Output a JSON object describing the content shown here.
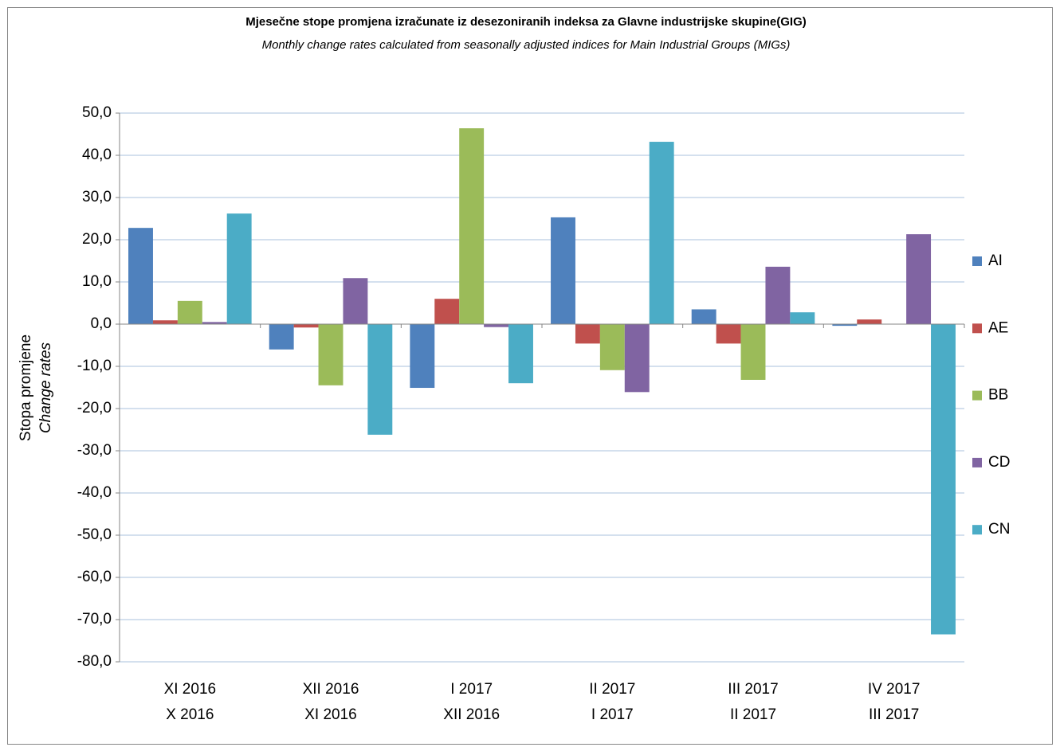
{
  "chart_data": {
    "type": "bar",
    "title": "Mjesečne stope promjena izračunate iz desezoniranih indeksa za Glavne industrijske skupine(GIG)",
    "subtitle": "Monthly change rates calculated from seasonally adjusted indices for Main Industrial Groups (MIGs)",
    "y_label": [
      "Stopa promjene",
      "Change rates"
    ],
    "categories": [
      [
        "XI 2016",
        "X 2016"
      ],
      [
        "XII 2016",
        "XI 2016"
      ],
      [
        "I 2017",
        "XII 2016"
      ],
      [
        "II 2017",
        "I 2017"
      ],
      [
        "III 2017",
        "II 2017"
      ],
      [
        "IV 2017",
        "III 2017"
      ]
    ],
    "series": [
      {
        "name": "AI",
        "color": "#4f81bd",
        "values": [
          22.8,
          -6.0,
          -15.1,
          25.3,
          3.5,
          -0.4
        ]
      },
      {
        "name": "AE",
        "color": "#c0504d",
        "values": [
          0.9,
          -0.8,
          6.0,
          -4.6,
          -4.6,
          1.1
        ]
      },
      {
        "name": "BB",
        "color": "#9bbb59",
        "values": [
          5.5,
          -14.5,
          46.4,
          -10.9,
          -13.2,
          0
        ]
      },
      {
        "name": "CD",
        "color": "#8064a2",
        "values": [
          0.5,
          10.9,
          -0.7,
          -16.1,
          13.6,
          21.3
        ]
      },
      {
        "name": "CN",
        "color": "#4bacc6",
        "values": [
          26.2,
          -26.2,
          -14.0,
          43.2,
          2.8,
          -73.5
        ]
      }
    ],
    "ylim": [
      -80,
      50
    ],
    "yticks": [
      {
        "value": -80,
        "label": "-80,0"
      },
      {
        "value": -70,
        "label": "-70,0"
      },
      {
        "value": -60,
        "label": "-60,0"
      },
      {
        "value": -50,
        "label": "-50,0"
      },
      {
        "value": -40,
        "label": "-40,0"
      },
      {
        "value": -30,
        "label": "-30,0"
      },
      {
        "value": -20,
        "label": "-20,0"
      },
      {
        "value": -10,
        "label": "-10,0"
      },
      {
        "value": 0,
        "label": "0,0"
      },
      {
        "value": 10,
        "label": "10,0"
      },
      {
        "value": 20,
        "label": "20,0"
      },
      {
        "value": 30,
        "label": "30,0"
      },
      {
        "value": 40,
        "label": "40,0"
      },
      {
        "value": 50,
        "label": "50,0"
      }
    ],
    "grid": true,
    "legend": "right"
  }
}
